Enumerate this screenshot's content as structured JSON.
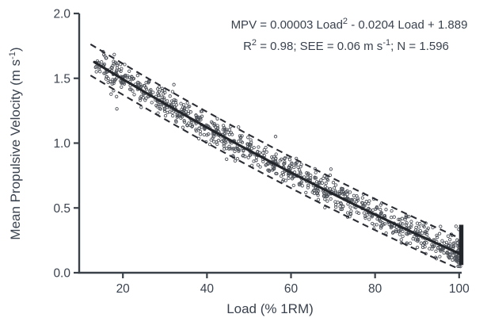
{
  "labels": {
    "y_title_a": "Mean Propulsive Velocity (m s",
    "y_title_sup": "-1",
    "y_title_b": ")",
    "x_title": "Load (% 1RM)"
  },
  "annotation": {
    "line1_text": "MPV = 0.00003 Load2 - 0.0204 Load + 1.889",
    "line1_a": "MPV = 0.00003 Load",
    "line1_sup": "2",
    "line1_b": " - 0.0204 Load + 1.889",
    "line2_text": "R2 = 0.98; SEE = 0.06 m s-1; N = 1.596",
    "line2_a": "R",
    "line2_sup": "2",
    "line2_b": " = 0.98; SEE = 0.06 m s",
    "line2_sup2": "-1",
    "line2_c": "; N = 1.596"
  },
  "chart_data": {
    "type": "scatter",
    "title": "",
    "xlabel": "Load (% 1RM)",
    "ylabel": "Mean Propulsive Velocity (m s-1)",
    "xlim": [
      9.6,
      100.6
    ],
    "ylim": [
      0.0,
      2.0
    ],
    "x_ticks": [
      {
        "label": "20",
        "value": 20
      },
      {
        "label": "40",
        "value": 40
      },
      {
        "label": "60",
        "value": 60
      },
      {
        "label": "80",
        "value": 80
      },
      {
        "label": "100",
        "value": 100
      }
    ],
    "y_ticks": [
      {
        "label": "0.0",
        "value": 0.0
      },
      {
        "label": "0.5",
        "value": 0.5
      },
      {
        "label": "1.0",
        "value": 1.0
      },
      {
        "label": "1.5",
        "value": 1.5
      },
      {
        "label": "2.0",
        "value": 2.0
      }
    ],
    "grid": false,
    "legend": "none",
    "regression": {
      "model": "quadratic",
      "a": 3e-05,
      "b": -0.0204,
      "c": 1.889,
      "x_range": [
        13.2,
        100.6
      ],
      "r2": 0.98,
      "see": 0.06,
      "see_units": "m s-1",
      "n": 1596
    },
    "prediction_band": {
      "offset": 0.12,
      "x_range": [
        12.3,
        100.6
      ],
      "style": "dashed"
    },
    "scatter": {
      "n_points": 920,
      "x_range": [
        13.5,
        100.3
      ],
      "noise_sd": 0.055,
      "outlier_fraction": 0.05,
      "outlier_sd": 0.1,
      "band_quantize_fraction": 0.55,
      "seed": 42
    },
    "end_cluster": {
      "n": 30,
      "x_range": [
        99.0,
        100.4
      ],
      "sd": 0.07
    },
    "endpoint_bar": {
      "x": 100.5,
      "y_range": [
        0.06,
        0.37
      ]
    },
    "colors": {
      "axis": "#3a4149",
      "text": "#39424e",
      "fit_line": "#22252a",
      "dashed_line": "#2a2d33",
      "marker": "#4d5259"
    }
  }
}
